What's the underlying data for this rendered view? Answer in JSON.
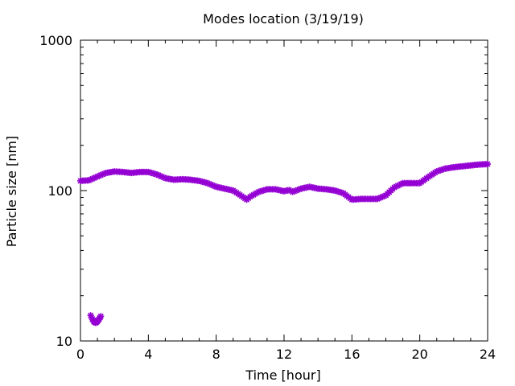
{
  "chart_data": {
    "type": "scatter",
    "title": "Modes location (3/19/19)",
    "xlabel": "Time [hour]",
    "ylabel": "Particle size [nm]",
    "xlim": [
      0,
      24
    ],
    "ylim": [
      10,
      1000
    ],
    "y_scale": "log",
    "x_ticks": [
      0,
      4,
      8,
      12,
      16,
      20,
      24
    ],
    "x_tick_labels": [
      "0",
      "4",
      "8",
      "12",
      "16",
      "20",
      "24"
    ],
    "y_ticks": [
      10,
      100,
      1000
    ],
    "y_tick_labels": [
      "10",
      "100",
      "1000"
    ],
    "grid": false,
    "marker_color": "#9400d3",
    "series": [
      {
        "x": [
          0,
          0.5,
          1.0,
          1.5,
          2.0,
          2.5,
          3.0,
          3.5,
          4.0,
          4.5,
          5.0,
          5.5,
          6.0,
          6.5,
          7.0,
          7.5,
          8.0,
          8.5,
          9.0,
          9.5,
          9.8,
          10.0,
          10.5,
          11.0,
          11.5,
          12.0,
          12.3,
          12.5,
          13.0,
          13.5,
          14.0,
          14.5,
          15.0,
          15.5,
          16.0,
          16.5,
          17.0,
          17.5,
          18.0,
          18.5,
          19.0,
          19.5,
          20.0,
          20.5,
          21.0,
          21.5,
          22.0,
          22.5,
          23.0,
          23.5,
          24.0
        ],
        "y": [
          116,
          117,
          124,
          131,
          134,
          133,
          131,
          133,
          133,
          128,
          121,
          118,
          119,
          118,
          116,
          112,
          106,
          103,
          100,
          92,
          87,
          91,
          98,
          102,
          102,
          99,
          101,
          98,
          103,
          106,
          103,
          102,
          100,
          96,
          87,
          88,
          88,
          88,
          93,
          105,
          112,
          112,
          112,
          123,
          134,
          140,
          143,
          145,
          147,
          149,
          150
        ]
      },
      {
        "x": [
          0.6,
          0.7,
          0.8,
          0.9,
          1.0,
          1.1,
          1.2
        ],
        "y": [
          14.8,
          14.0,
          13.4,
          13.2,
          13.5,
          14.0,
          14.6
        ]
      }
    ]
  }
}
